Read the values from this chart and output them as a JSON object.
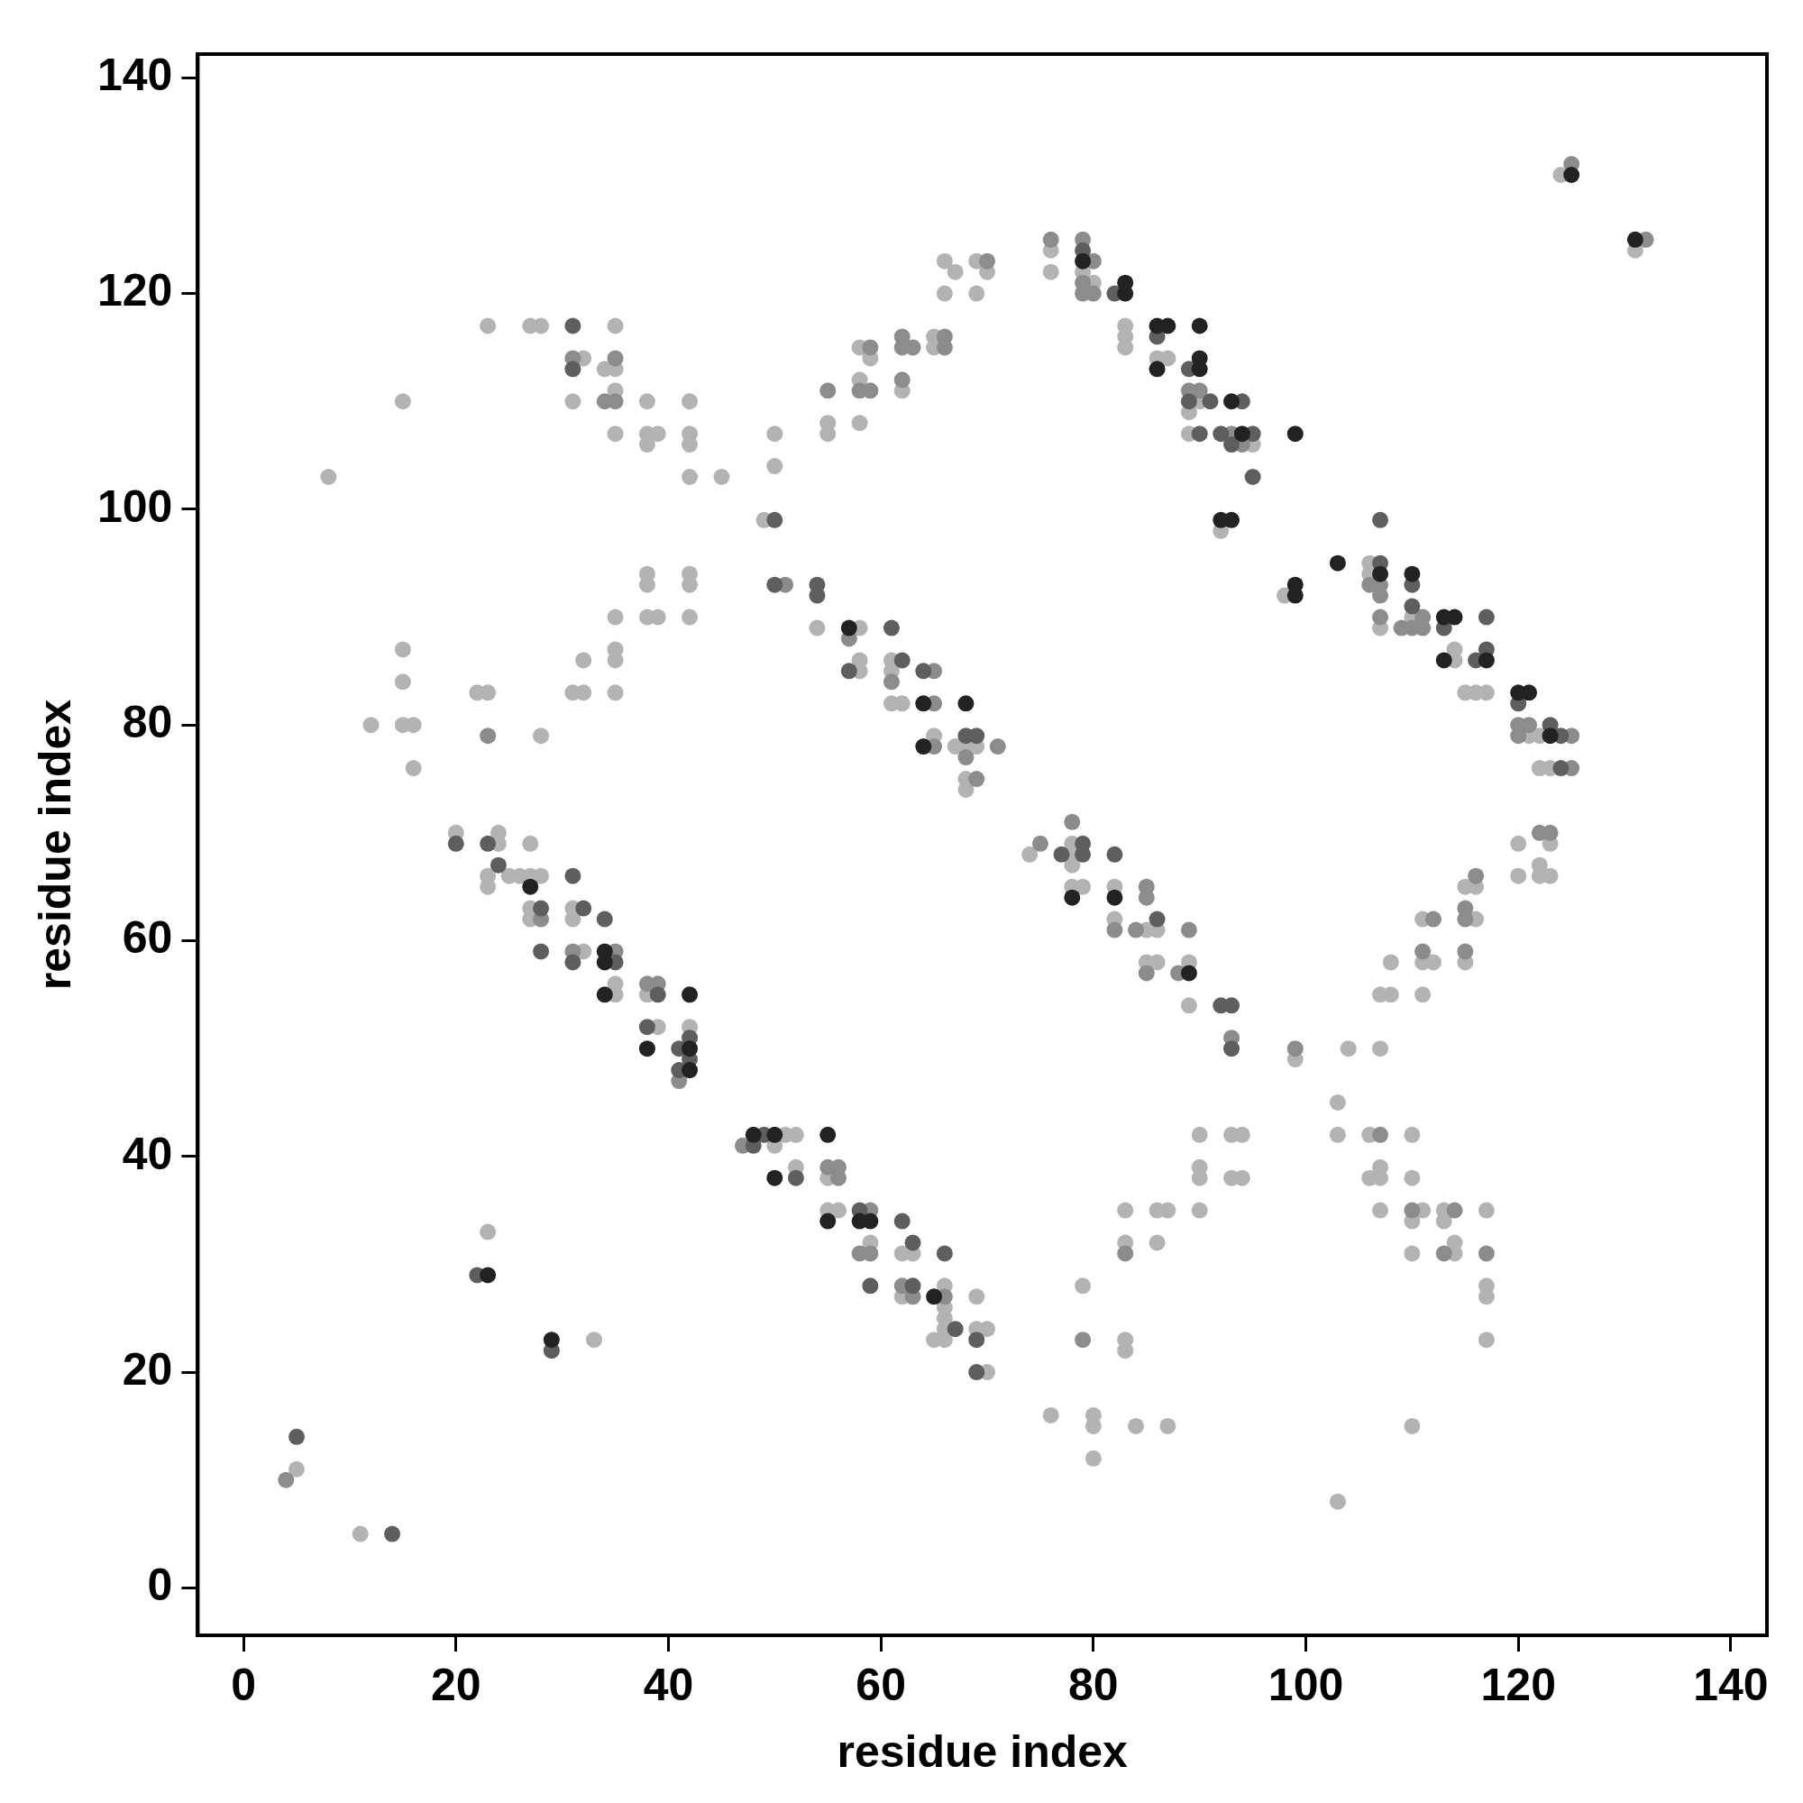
{
  "chart_data": {
    "type": "scatter",
    "xlabel": "residue index",
    "ylabel": "residue index",
    "xlim": [
      -4.3,
      143.4
    ],
    "ylim": [
      -4.4,
      142.2
    ],
    "xticks": [
      0,
      20,
      40,
      60,
      80,
      100,
      120,
      140
    ],
    "yticks": [
      0,
      20,
      40,
      60,
      80,
      100,
      120,
      140
    ],
    "marker": "circle",
    "series": [
      {
        "color": "#b3b3b3",
        "x": [
          5,
          11,
          23,
          33,
          20,
          24,
          24,
          23,
          23,
          25,
          26,
          27,
          27,
          28,
          27,
          27,
          31,
          31,
          32,
          35,
          35,
          38,
          39,
          42,
          50,
          51,
          52,
          52,
          55,
          55,
          56,
          59,
          62,
          63,
          62,
          66,
          66,
          66,
          66,
          65,
          66,
          69,
          69,
          70,
          70,
          8,
          15,
          23,
          27,
          28,
          35,
          32,
          34,
          35,
          31,
          35,
          35,
          38,
          38,
          38,
          39,
          42,
          42,
          42,
          42,
          45,
          49,
          50,
          50,
          15,
          15,
          15,
          16,
          16,
          12,
          22,
          23,
          28,
          31,
          32,
          32,
          35,
          35,
          35,
          35,
          38,
          38,
          38,
          39,
          42,
          42,
          42,
          54,
          58,
          58,
          58,
          61,
          61,
          61,
          62,
          65,
          67,
          68,
          69,
          68,
          68,
          55,
          55,
          58,
          58,
          58,
          59,
          62,
          65,
          65,
          66,
          66,
          67,
          69,
          70,
          69,
          76,
          76,
          79,
          80,
          83,
          83,
          83,
          86,
          87,
          89,
          90,
          89,
          95,
          92,
          98,
          106,
          106,
          107,
          110,
          114,
          114,
          115,
          116,
          117,
          121,
          122,
          122,
          123,
          124,
          131,
          74,
          78,
          78,
          78,
          78,
          79,
          82,
          82,
          85,
          86,
          85,
          86,
          89,
          89,
          99,
          90,
          90,
          90,
          90,
          93,
          94,
          93,
          94,
          83,
          83,
          86,
          87,
          86,
          79,
          83,
          83,
          76,
          80,
          80,
          80,
          84,
          87,
          103,
          110,
          103,
          103,
          104,
          107,
          106,
          106,
          107,
          107,
          107,
          110,
          110,
          111,
          110,
          110,
          113,
          113,
          114,
          114,
          117,
          117,
          117,
          117,
          107,
          108,
          108,
          111,
          111,
          112,
          111,
          115,
          116,
          115,
          116,
          120,
          120,
          123,
          122,
          122,
          123
        ],
        "values": [
          11,
          5,
          33,
          23,
          70,
          70,
          69,
          66,
          65,
          66,
          66,
          66,
          69,
          66,
          63,
          62,
          63,
          62,
          59,
          56,
          55,
          55,
          52,
          52,
          41,
          42,
          42,
          39,
          38,
          35,
          35,
          32,
          31,
          31,
          27,
          28,
          26,
          25,
          24,
          23,
          23,
          27,
          24,
          24,
          20,
          103,
          110,
          117,
          117,
          117,
          117,
          114,
          113,
          113,
          110,
          111,
          107,
          110,
          107,
          106,
          107,
          110,
          107,
          106,
          103,
          103,
          99,
          104,
          107,
          87,
          84,
          80,
          80,
          76,
          80,
          83,
          83,
          79,
          83,
          83,
          86,
          90,
          87,
          86,
          83,
          94,
          93,
          90,
          90,
          94,
          93,
          90,
          89,
          89,
          86,
          85,
          86,
          85,
          82,
          82,
          79,
          78,
          78,
          78,
          75,
          74,
          108,
          107,
          112,
          108,
          115,
          114,
          111,
          116,
          115,
          123,
          120,
          122,
          123,
          122,
          120,
          124,
          122,
          122,
          121,
          117,
          116,
          115,
          114,
          114,
          109,
          110,
          107,
          106,
          98,
          92,
          95,
          94,
          89,
          90,
          87,
          86,
          83,
          83,
          83,
          79,
          79,
          76,
          76,
          131,
          124,
          68,
          69,
          68,
          67,
          65,
          65,
          65,
          62,
          61,
          61,
          58,
          58,
          58,
          54,
          49,
          42,
          39,
          38,
          35,
          42,
          42,
          38,
          38,
          35,
          32,
          35,
          35,
          32,
          28,
          23,
          22,
          16,
          16,
          15,
          12,
          15,
          15,
          8,
          15,
          45,
          42,
          50,
          50,
          42,
          38,
          38,
          39,
          35,
          42,
          38,
          35,
          34,
          31,
          35,
          34,
          32,
          31,
          35,
          28,
          27,
          23,
          55,
          55,
          58,
          55,
          58,
          58,
          62,
          58,
          62,
          65,
          65,
          69,
          66,
          69,
          67,
          66,
          66
        ]
      },
      {
        "color": "#8c8c8c",
        "x": [
          4,
          23,
          28,
          31,
          35,
          38,
          39,
          41,
          47,
          55,
          56,
          56,
          59,
          58,
          59,
          62,
          63,
          66,
          31,
          35,
          34,
          35,
          51,
          57,
          61,
          65,
          65,
          65,
          68,
          69,
          71,
          55,
          58,
          59,
          59,
          62,
          63,
          62,
          62,
          66,
          66,
          70,
          76,
          79,
          80,
          79,
          79,
          80,
          89,
          90,
          93,
          94,
          132,
          125,
          106,
          107,
          107,
          107,
          109,
          111,
          111,
          110,
          120,
          121,
          120,
          125,
          125,
          75,
          78,
          82,
          85,
          85,
          84,
          85,
          88,
          89,
          93,
          99,
          83,
          79,
          107,
          110,
          114,
          113,
          117,
          111,
          112,
          115,
          115,
          115,
          116,
          122,
          123
        ],
        "values": [
          10,
          79,
          62,
          59,
          59,
          56,
          56,
          47,
          41,
          39,
          39,
          38,
          35,
          31,
          31,
          28,
          27,
          27,
          114,
          114,
          110,
          110,
          93,
          88,
          84,
          85,
          82,
          78,
          77,
          75,
          78,
          111,
          111,
          115,
          111,
          116,
          115,
          115,
          112,
          116,
          115,
          123,
          125,
          125,
          123,
          121,
          120,
          120,
          111,
          111,
          107,
          106,
          125,
          132,
          93,
          93,
          92,
          90,
          89,
          90,
          89,
          89,
          80,
          80,
          79,
          79,
          76,
          69,
          71,
          61,
          65,
          64,
          61,
          57,
          57,
          61,
          51,
          50,
          31,
          23,
          42,
          35,
          35,
          31,
          31,
          59,
          62,
          59,
          63,
          62,
          66,
          70,
          70
        ]
      },
      {
        "color": "#5e5e5e",
        "x": [
          5,
          14,
          22,
          29,
          20,
          23,
          24,
          28,
          28,
          31,
          32,
          31,
          34,
          35,
          39,
          38,
          41,
          42,
          41,
          42,
          48,
          49,
          52,
          58,
          59,
          62,
          63,
          63,
          66,
          67,
          69,
          69,
          31,
          31,
          50,
          50,
          54,
          54,
          57,
          61,
          62,
          64,
          68,
          69,
          79,
          82,
          86,
          89,
          89,
          91,
          90,
          92,
          93,
          95,
          94,
          95,
          107,
          107,
          110,
          110,
          113,
          117,
          117,
          116,
          120,
          123,
          124,
          124,
          77,
          79,
          79,
          82,
          86,
          92,
          93,
          93
        ],
        "values": [
          14,
          5,
          29,
          22,
          69,
          69,
          67,
          63,
          59,
          66,
          63,
          58,
          62,
          58,
          55,
          52,
          50,
          51,
          48,
          49,
          41,
          42,
          38,
          35,
          28,
          34,
          32,
          28,
          31,
          24,
          23,
          20,
          117,
          113,
          99,
          93,
          93,
          92,
          85,
          89,
          86,
          85,
          79,
          79,
          124,
          120,
          116,
          113,
          110,
          110,
          107,
          107,
          106,
          107,
          110,
          103,
          95,
          99,
          93,
          91,
          89,
          90,
          87,
          86,
          82,
          80,
          79,
          76,
          68,
          69,
          68,
          68,
          62,
          54,
          54,
          50
        ]
      },
      {
        "color": "#222222",
        "x": [
          23,
          29,
          27,
          34,
          34,
          34,
          38,
          42,
          42,
          42,
          48,
          50,
          50,
          55,
          55,
          58,
          59,
          65,
          57,
          64,
          64,
          68,
          79,
          83,
          83,
          86,
          87,
          86,
          90,
          90,
          90,
          94,
          93,
          99,
          92,
          93,
          99,
          99,
          103,
          107,
          110,
          113,
          114,
          113,
          117,
          120,
          121,
          123,
          125,
          131,
          78,
          82,
          89
        ],
        "values": [
          29,
          23,
          65,
          59,
          58,
          55,
          50,
          50,
          55,
          48,
          42,
          42,
          38,
          42,
          34,
          34,
          34,
          27,
          89,
          82,
          78,
          82,
          123,
          120,
          121,
          117,
          117,
          113,
          117,
          114,
          113,
          107,
          110,
          107,
          99,
          99,
          93,
          92,
          95,
          94,
          94,
          90,
          90,
          86,
          86,
          83,
          83,
          79,
          131,
          125,
          64,
          64,
          57
        ]
      }
    ]
  }
}
